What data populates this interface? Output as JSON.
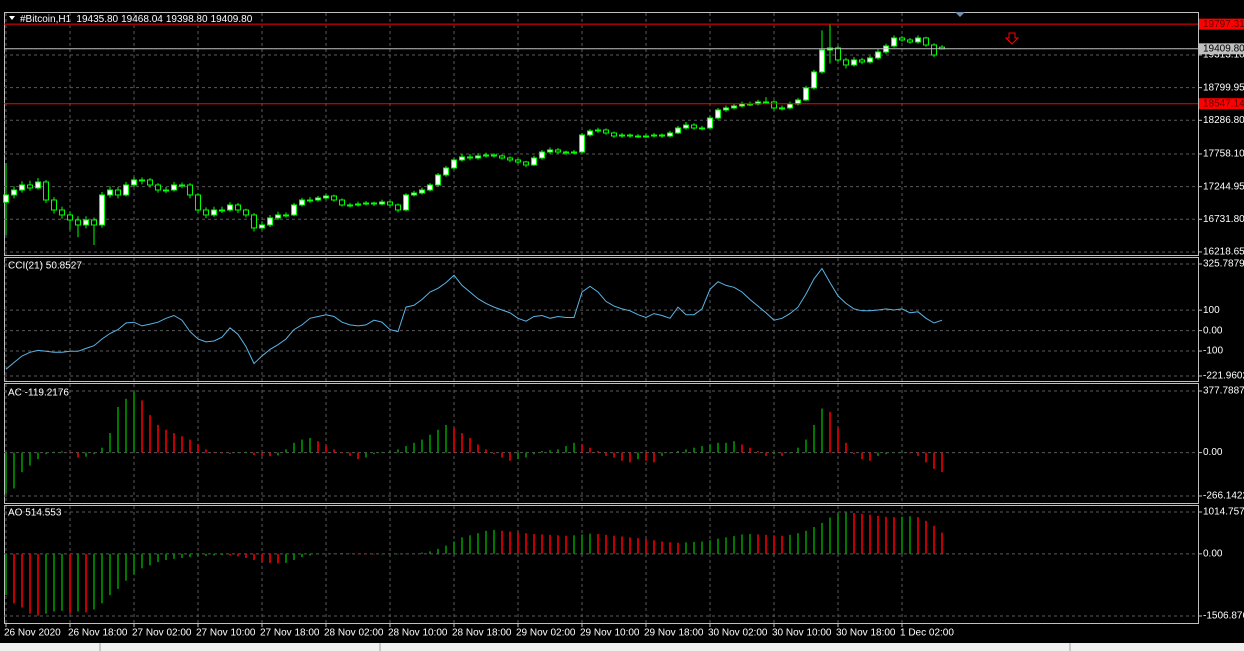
{
  "chart_data": [
    {
      "type": "candlestick",
      "title": "#Bitcoin,H1",
      "title_values": [
        "19435.80",
        "19468.04",
        "19398.80",
        "19409.80"
      ],
      "open": [
        17000,
        17114,
        17192,
        17271,
        17224,
        17318,
        17035,
        16878,
        16800,
        16721,
        16643,
        16721,
        16643,
        17114,
        17192,
        17114,
        17271,
        17350,
        17350,
        17271,
        17192,
        17192,
        17271,
        17271,
        17114,
        16878,
        16800,
        16878,
        16878,
        16957,
        16878,
        16800,
        16596,
        16643,
        16753,
        16800,
        16800,
        16957,
        17035,
        17035,
        17067,
        17098,
        17035,
        16957,
        16957,
        16972,
        16988,
        16972,
        17004,
        16957,
        16878,
        17114,
        17145,
        17192,
        17271,
        17428,
        17538,
        17664,
        17711,
        17695,
        17727,
        17742,
        17727,
        17695,
        17664,
        17632,
        17585,
        17695,
        17789,
        17821,
        17789,
        17774,
        17789,
        18056,
        18119,
        18135,
        18088,
        18040,
        18056,
        18040,
        18040,
        18040,
        18056,
        18040,
        18088,
        18166,
        18212,
        18166,
        18166,
        18323,
        18449,
        18481,
        18512,
        18543,
        18543,
        18575,
        18575,
        18481,
        18481,
        18543,
        18606,
        18795,
        19046,
        19391,
        19423,
        19235,
        19156,
        19235,
        19203,
        19266,
        19360,
        19454,
        19580,
        19549,
        19517,
        19580,
        19470,
        19435.8
      ],
      "high": [
        17617,
        17250,
        17330,
        17340,
        17380,
        17350,
        17080,
        16930,
        16850,
        16780,
        16780,
        16760,
        17160,
        17250,
        17240,
        17320,
        17400,
        17390,
        17380,
        17300,
        17240,
        17320,
        17310,
        17300,
        17140,
        16920,
        16930,
        16930,
        17000,
        16990,
        16900,
        16830,
        16700,
        16800,
        16850,
        16840,
        16990,
        17070,
        17080,
        17100,
        17130,
        17120,
        17060,
        16990,
        17010,
        17020,
        17010,
        17040,
        17030,
        16980,
        17140,
        17180,
        17230,
        17300,
        17460,
        17570,
        17700,
        17760,
        17760,
        17770,
        17780,
        17770,
        17750,
        17720,
        17690,
        17650,
        17730,
        17820,
        17860,
        17850,
        17810,
        17820,
        18090,
        18150,
        18170,
        18160,
        18110,
        18090,
        18080,
        18070,
        18080,
        18090,
        18080,
        18120,
        18200,
        18260,
        18240,
        18200,
        18360,
        18480,
        18520,
        18550,
        18580,
        18580,
        18610,
        18650,
        18600,
        18520,
        18580,
        18640,
        18830,
        19080,
        19700,
        19790,
        19460,
        19270,
        19280,
        19270,
        19300,
        19400,
        19490,
        19620,
        19610,
        19580,
        19620,
        19600,
        19500,
        19468.04
      ],
      "low": [
        16486,
        17060,
        17150,
        17180,
        17200,
        16990,
        16820,
        16740,
        16560,
        16450,
        16590,
        16329,
        16600,
        17070,
        17060,
        17090,
        17240,
        17280,
        17230,
        17150,
        17140,
        17170,
        17220,
        17060,
        16830,
        16750,
        16770,
        16830,
        16850,
        16830,
        16760,
        16540,
        16560,
        16610,
        16720,
        16760,
        16780,
        16930,
        16990,
        17010,
        17040,
        17010,
        16930,
        16920,
        16930,
        16950,
        16940,
        16950,
        16920,
        16840,
        16860,
        17090,
        17120,
        17170,
        17250,
        17400,
        17510,
        17640,
        17660,
        17670,
        17700,
        17700,
        17670,
        17630,
        17600,
        17550,
        17570,
        17670,
        17760,
        17760,
        17740,
        17750,
        17770,
        18030,
        18090,
        18060,
        18010,
        18010,
        18010,
        18010,
        18010,
        18020,
        18010,
        18020,
        18070,
        18140,
        18140,
        18130,
        18150,
        18300,
        18420,
        18460,
        18490,
        18510,
        18520,
        18540,
        18440,
        18440,
        18460,
        18520,
        18590,
        18770,
        19020,
        19180,
        19200,
        19100,
        19130,
        19170,
        19180,
        19240,
        19330,
        19430,
        19520,
        19490,
        19490,
        19440,
        19280,
        19398.8
      ],
      "close": [
        17114,
        17192,
        17271,
        17224,
        17318,
        17035,
        16878,
        16800,
        16721,
        16643,
        16721,
        16643,
        17114,
        17192,
        17114,
        17271,
        17350,
        17350,
        17271,
        17192,
        17192,
        17271,
        17271,
        17114,
        16878,
        16800,
        16878,
        16878,
        16957,
        16878,
        16800,
        16596,
        16643,
        16753,
        16800,
        16800,
        16957,
        17035,
        17035,
        17067,
        17098,
        17035,
        16957,
        16957,
        16972,
        16988,
        16972,
        17004,
        16957,
        16878,
        17114,
        17145,
        17192,
        17271,
        17428,
        17538,
        17664,
        17711,
        17695,
        17727,
        17742,
        17727,
        17695,
        17664,
        17632,
        17585,
        17695,
        17789,
        17821,
        17789,
        17774,
        17789,
        18056,
        18119,
        18135,
        18088,
        18040,
        18056,
        18040,
        18040,
        18040,
        18056,
        18040,
        18088,
        18166,
        18212,
        18166,
        18166,
        18323,
        18449,
        18481,
        18512,
        18543,
        18543,
        18575,
        18575,
        18481,
        18481,
        18543,
        18606,
        18795,
        19046,
        19391,
        19423,
        19235,
        19156,
        19235,
        19203,
        19266,
        19360,
        19454,
        19580,
        19549,
        19517,
        19580,
        19470,
        19313,
        19409.8
      ],
      "up_color": "#ffffff",
      "down_color": "#000000",
      "line_color": "#00ff00",
      "xlim": [
        -0.25,
        149
      ],
      "xticks": [
        {
          "value": 0,
          "label": "26 Nov 2020"
        },
        {
          "value": 8,
          "label": "26 Nov 18:00"
        },
        {
          "value": 16,
          "label": "27 Nov 02:00"
        },
        {
          "value": 24,
          "label": "27 Nov 10:00"
        },
        {
          "value": 32,
          "label": "27 Nov 18:00"
        },
        {
          "value": 40,
          "label": "28 Nov 02:00"
        },
        {
          "value": 48,
          "label": "28 Nov 10:00"
        },
        {
          "value": 56,
          "label": "28 Nov 18:00"
        },
        {
          "value": 64,
          "label": "29 Nov 02:00"
        },
        {
          "value": 72,
          "label": "29 Nov 10:00"
        },
        {
          "value": 80,
          "label": "29 Nov 18:00"
        },
        {
          "value": 88,
          "label": "30 Nov 02:00"
        },
        {
          "value": 96,
          "label": "30 Nov 10:00"
        },
        {
          "value": 104,
          "label": "30 Nov 18:00"
        },
        {
          "value": 112,
          "label": "1 Dec 02:00"
        }
      ],
      "ylim": [
        16171,
        19988
      ],
      "yticks": [
        16218.65,
        {
          "value": 16731.8,
          "label": "16731.80"
        },
        17244.95,
        {
          "value": 17758.1,
          "label": "17758.10"
        },
        {
          "value": 18286.8,
          "label": "18286.80"
        },
        18799.95,
        {
          "value": 19313.1,
          "label": "19313.10"
        }
      ],
      "levels": [
        {
          "value": 19797.31,
          "color": "#ff0000"
        },
        {
          "value": 18547.14,
          "color": "#ff0000"
        },
        {
          "value": 19409.8,
          "label": "19409.80",
          "color": "#c0c0c0"
        }
      ],
      "grid": true
    },
    {
      "type": "line",
      "title": "CCI(21) 50.8527",
      "color": "#5ab4e6",
      "values": [
        -189,
        -156,
        -124,
        -106,
        -97,
        -101,
        -106,
        -106,
        -101,
        -101,
        -87,
        -74,
        -41,
        -14,
        5,
        37,
        41,
        23,
        32,
        41,
        60,
        74,
        51,
        -5,
        -41,
        -55,
        -51,
        -32,
        14,
        -18,
        -78,
        -161,
        -124,
        -92,
        -69,
        -41,
        5,
        28,
        60,
        69,
        78,
        69,
        41,
        28,
        23,
        28,
        51,
        41,
        5,
        -5,
        115,
        124,
        152,
        189,
        207,
        235,
        271,
        221,
        189,
        156,
        133,
        115,
        101,
        87,
        60,
        46,
        69,
        74,
        60,
        69,
        64,
        64,
        189,
        216,
        189,
        143,
        120,
        106,
        97,
        78,
        64,
        83,
        74,
        60,
        115,
        78,
        78,
        106,
        202,
        239,
        221,
        212,
        189,
        152,
        120,
        87,
        51,
        60,
        83,
        115,
        179,
        253,
        304,
        235,
        170,
        133,
        106,
        97,
        97,
        101,
        106,
        101,
        106,
        87,
        92,
        60,
        37,
        50.8527
      ],
      "ylim": [
        -221.9602,
        325.7879
      ],
      "yticks": [
        325.7879,
        100,
        {
          "value": 0,
          "label": "0.00"
        },
        -100,
        -221.9602
      ],
      "grid": true
    },
    {
      "type": "bar",
      "title": "AC -119.2176",
      "up_color": "#00a000",
      "down_color": "#ff0000",
      "values": [
        -250,
        -220,
        -120,
        -80,
        -40,
        -10,
        5,
        8,
        -5,
        -30,
        -25,
        -10,
        30,
        120,
        280,
        330,
        375,
        320,
        230,
        170,
        140,
        120,
        100,
        80,
        50,
        20,
        5,
        -5,
        -8,
        3,
        5,
        -15,
        -20,
        -22,
        -18,
        20,
        60,
        80,
        90,
        70,
        40,
        20,
        0,
        -20,
        -40,
        -30,
        -10,
        5,
        10,
        20,
        40,
        60,
        80,
        110,
        140,
        170,
        150,
        120,
        90,
        50,
        20,
        -10,
        -30,
        -50,
        -40,
        -30,
        -10,
        10,
        15,
        20,
        40,
        60,
        50,
        30,
        10,
        -20,
        -30,
        -50,
        -60,
        -40,
        -50,
        -60,
        -20,
        -5,
        10,
        20,
        30,
        40,
        50,
        60,
        60,
        70,
        50,
        30,
        10,
        -20,
        -10,
        -20,
        -5,
        30,
        80,
        170,
        270,
        250,
        150,
        60,
        -10,
        -40,
        -50,
        -20,
        -10,
        0,
        5,
        -5,
        -20,
        -60,
        -100,
        -119.2176
      ],
      "ylim": [
        -266.1422,
        377.7887
      ],
      "yticks": [
        377.7887,
        {
          "value": 0,
          "label": "0.00"
        },
        -266.1422
      ],
      "grid": true
    },
    {
      "type": "bar",
      "title": "AO 514.553",
      "up_color": "#00a000",
      "down_color": "#ff0000",
      "values": [
        -1000,
        -1200,
        -1300,
        -1450,
        -1500,
        -1450,
        -1400,
        -1380,
        -1450,
        -1400,
        -1420,
        -1350,
        -1200,
        -1000,
        -850,
        -650,
        -500,
        -350,
        -280,
        -200,
        -150,
        -120,
        -100,
        -80,
        -60,
        -50,
        -40,
        -30,
        -40,
        -60,
        -100,
        -150,
        -200,
        -220,
        -230,
        -220,
        -150,
        -80,
        -40,
        -10,
        5,
        10,
        20,
        10,
        0,
        -10,
        -15,
        -10,
        -5,
        -5,
        5,
        10,
        30,
        60,
        120,
        200,
        300,
        400,
        450,
        500,
        560,
        580,
        560,
        540,
        520,
        500,
        480,
        470,
        460,
        450,
        440,
        450,
        470,
        490,
        480,
        460,
        440,
        420,
        400,
        380,
        360,
        330,
        300,
        280,
        270,
        280,
        290,
        300,
        330,
        370,
        400,
        430,
        470,
        480,
        470,
        460,
        450,
        440,
        460,
        500,
        560,
        650,
        750,
        880,
        980,
        1000,
        990,
        970,
        950,
        920,
        900,
        890,
        900,
        910,
        890,
        800,
        680,
        514.553
      ],
      "ylim": [
        -1506.876,
        1014.757
      ],
      "yticks": [
        1014.757,
        {
          "value": 0,
          "label": "0.00"
        },
        -1506.876
      ],
      "grid": true
    }
  ]
}
